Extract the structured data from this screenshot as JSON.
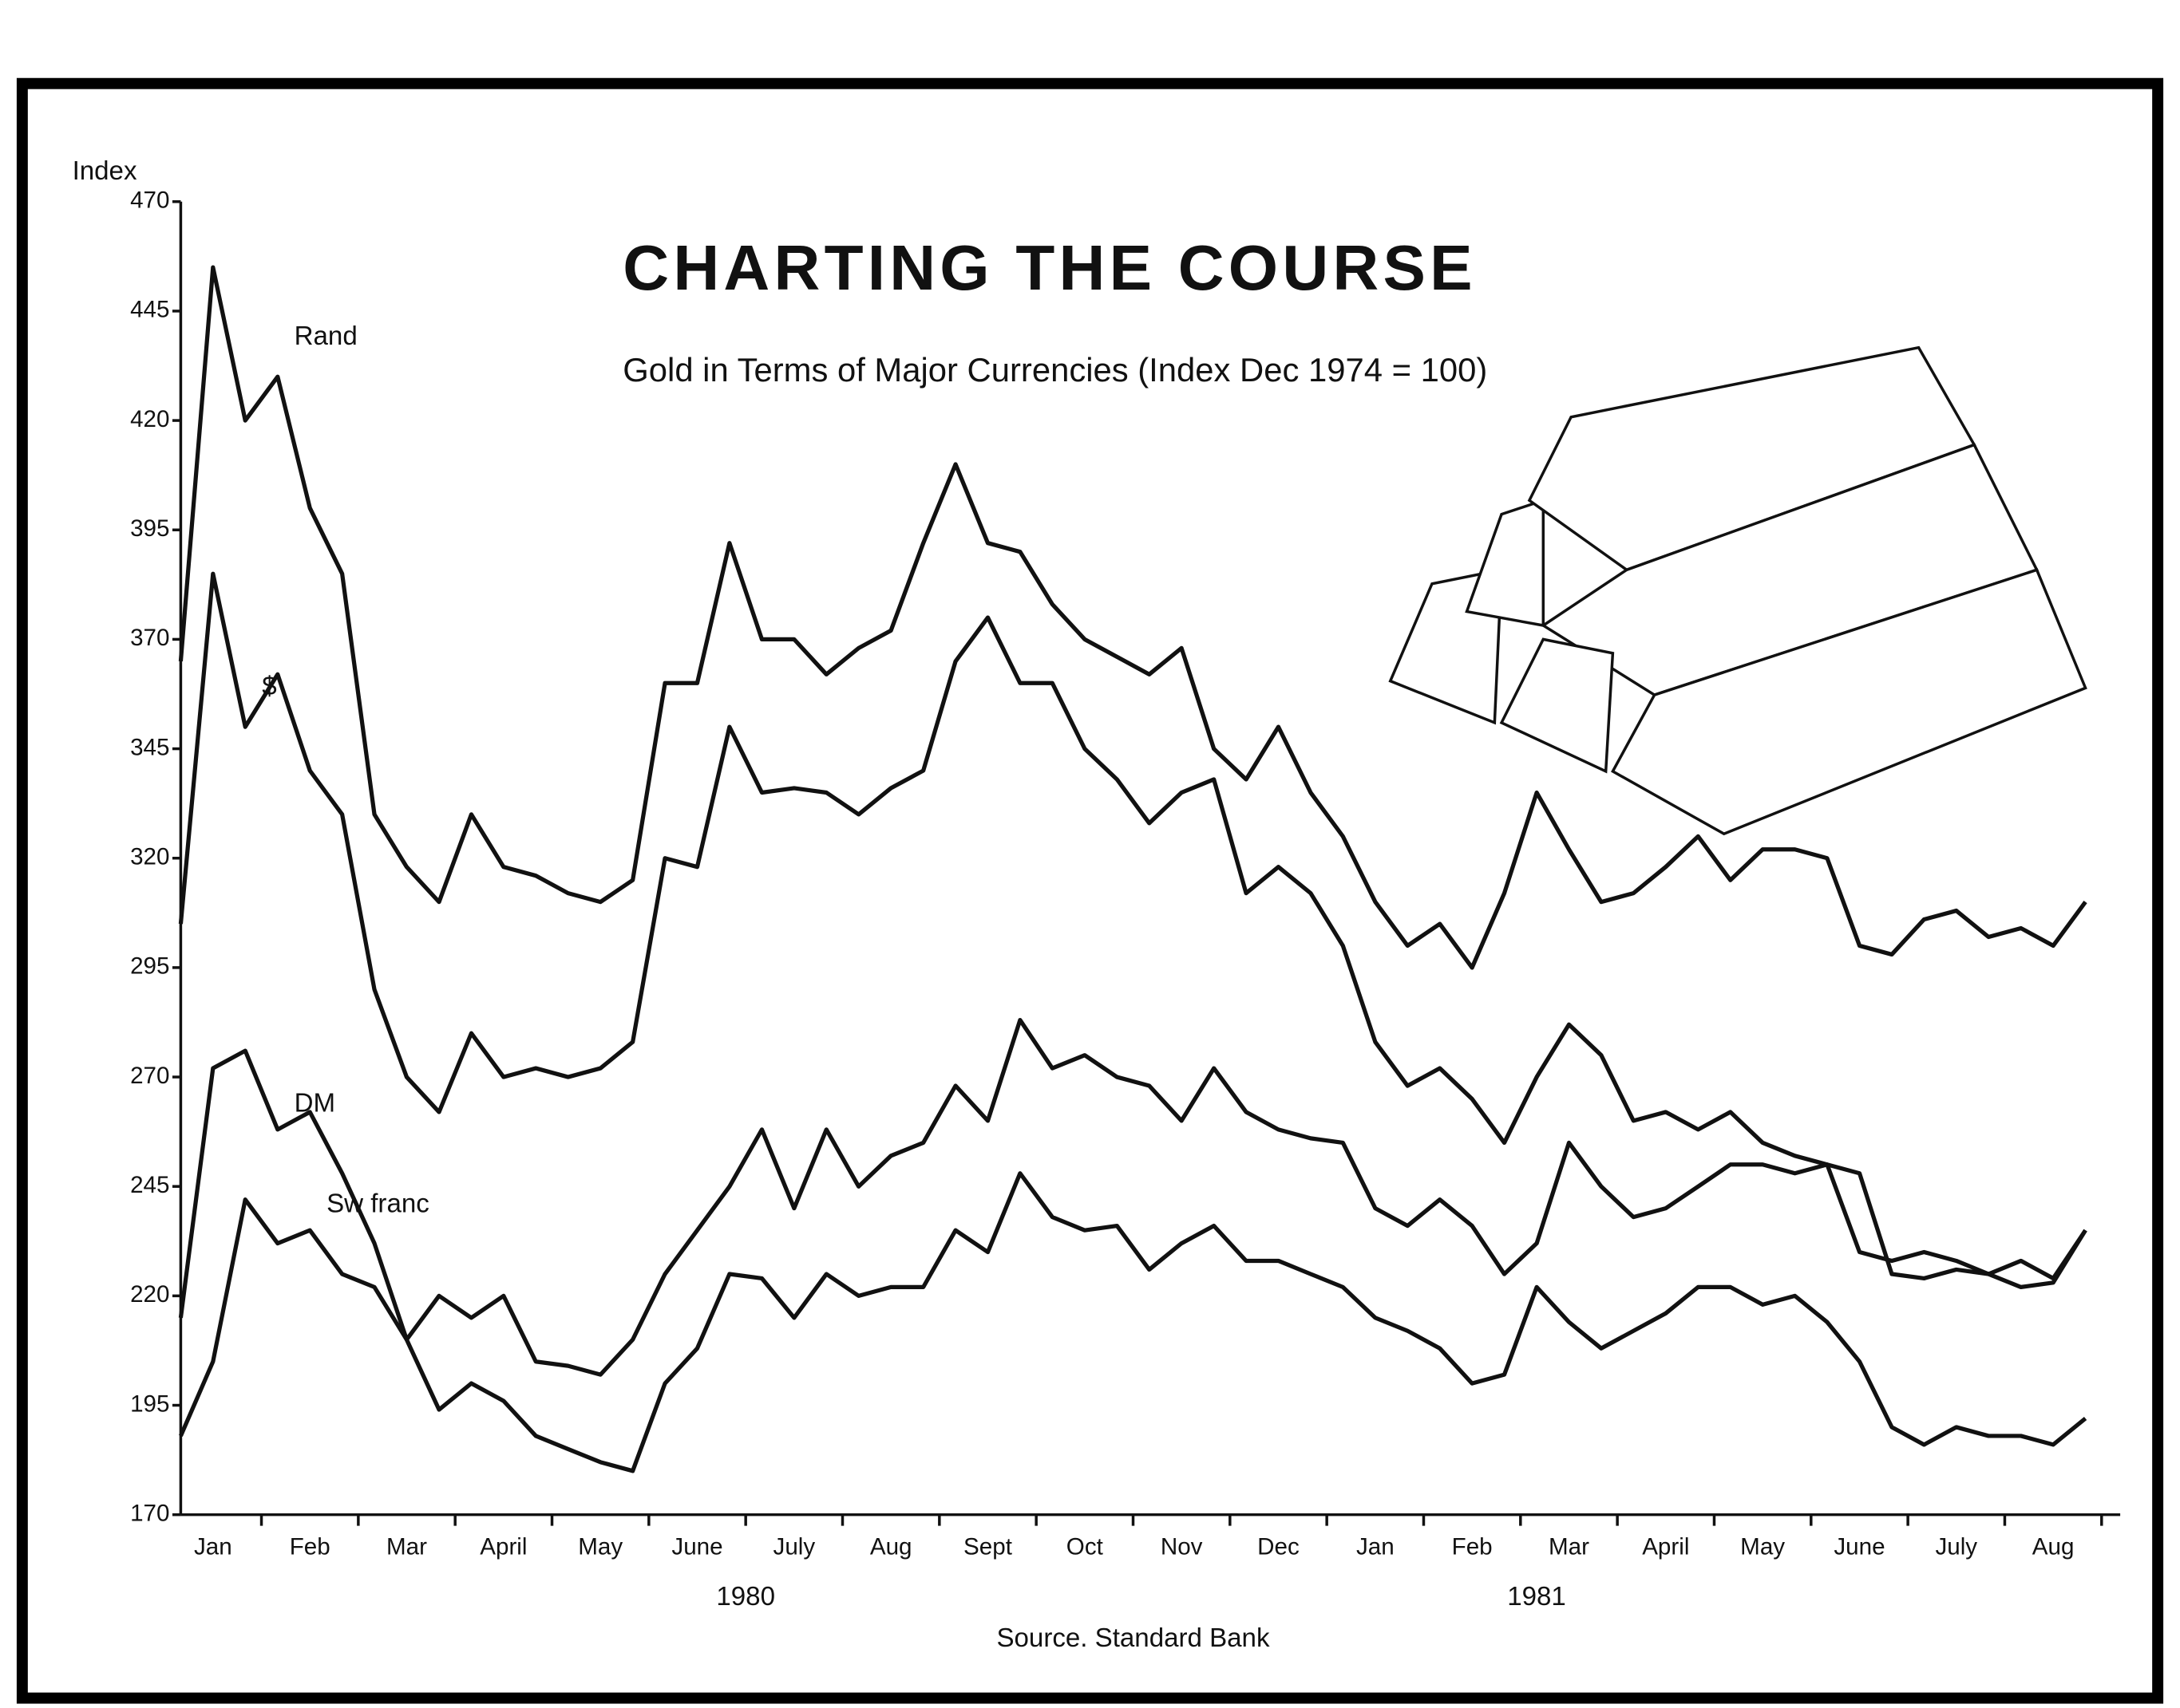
{
  "chart_data": {
    "type": "line",
    "title": "CHARTING THE COURSE",
    "subtitle": "Gold in Terms of Major Currencies (Index Dec 1974 = 100)",
    "y_label": "Index",
    "source": "Source. Standard Bank",
    "year_labels": [
      "1980",
      "1981"
    ],
    "categories": [
      null,
      "Jan",
      null,
      null,
      "Feb",
      null,
      null,
      "Mar",
      null,
      null,
      "April",
      null,
      null,
      "May",
      null,
      null,
      "June",
      null,
      null,
      "July",
      null,
      null,
      "Aug",
      null,
      null,
      "Sept",
      null,
      null,
      "Oct",
      null,
      null,
      "Nov",
      null,
      null,
      "Dec",
      null,
      null,
      "Jan",
      null,
      null,
      "Feb",
      null,
      null,
      "Mar",
      null,
      null,
      "April",
      null,
      null,
      "May",
      null,
      null,
      "June",
      null,
      null,
      "July",
      null,
      null,
      "Aug",
      null
    ],
    "ylim": [
      170,
      470
    ],
    "yticks": [
      170,
      195,
      220,
      245,
      270,
      295,
      320,
      345,
      370,
      395,
      420,
      445,
      470
    ],
    "series": [
      {
        "name": "Rand",
        "color": "#111111",
        "values": [
          365,
          455,
          420,
          430,
          400,
          385,
          330,
          318,
          310,
          330,
          318,
          316,
          312,
          310,
          315,
          360,
          360,
          392,
          370,
          370,
          362,
          368,
          372,
          392,
          410,
          392,
          390,
          378,
          370,
          366,
          362,
          368,
          345,
          338,
          350,
          335,
          325,
          310,
          300,
          305,
          295,
          312,
          335,
          322,
          310,
          312,
          318,
          325,
          315,
          322,
          322,
          320,
          300,
          298,
          306,
          308,
          302,
          304,
          300,
          310
        ]
      },
      {
        "name": "$",
        "color": "#111111",
        "values": [
          305,
          385,
          350,
          362,
          340,
          330,
          290,
          270,
          262,
          280,
          270,
          272,
          270,
          272,
          278,
          320,
          318,
          350,
          335,
          336,
          335,
          330,
          336,
          340,
          365,
          375,
          360,
          360,
          345,
          338,
          328,
          335,
          338,
          312,
          318,
          312,
          300,
          278,
          268,
          272,
          265,
          255,
          270,
          282,
          275,
          260,
          262,
          258,
          262,
          255,
          252,
          250,
          230,
          228,
          230,
          228,
          225,
          228,
          224,
          235
        ]
      },
      {
        "name": "DM",
        "color": "#111111",
        "values": [
          215,
          272,
          276,
          258,
          262,
          248,
          232,
          210,
          220,
          215,
          220,
          205,
          204,
          202,
          210,
          225,
          235,
          245,
          258,
          240,
          258,
          245,
          252,
          255,
          268,
          260,
          283,
          272,
          275,
          270,
          268,
          260,
          272,
          262,
          258,
          256,
          255,
          240,
          236,
          242,
          236,
          225,
          232,
          255,
          245,
          238,
          240,
          245,
          250,
          250,
          248,
          250,
          248,
          225,
          224,
          226,
          225,
          222,
          223,
          235
        ]
      },
      {
        "name": "Sw franc",
        "color": "#111111",
        "values": [
          188,
          205,
          242,
          232,
          235,
          225,
          222,
          210,
          194,
          200,
          196,
          188,
          185,
          182,
          180,
          200,
          208,
          225,
          224,
          215,
          225,
          220,
          222,
          222,
          235,
          230,
          248,
          238,
          235,
          236,
          226,
          232,
          236,
          228,
          228,
          225,
          222,
          215,
          212,
          208,
          200,
          202,
          222,
          214,
          208,
          212,
          216,
          222,
          222,
          218,
          220,
          214,
          205,
          190,
          186,
          190,
          188,
          188,
          186,
          192
        ]
      }
    ]
  }
}
